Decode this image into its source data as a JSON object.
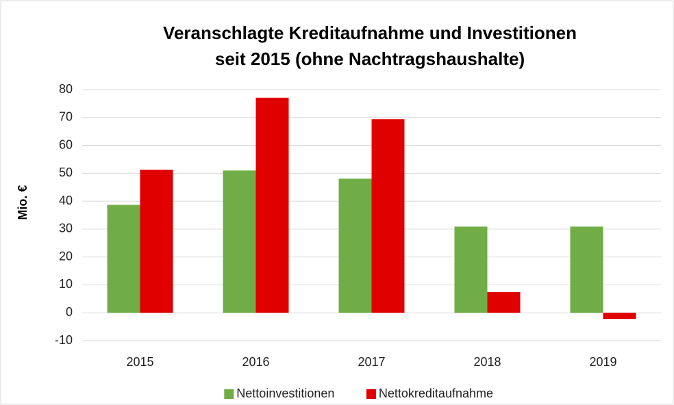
{
  "chart_data": {
    "type": "bar",
    "title": [
      "Veranschlagte Kreditaufnahme und Investitionen",
      "seit 2015 (ohne Nachtragshaushalte)"
    ],
    "y_label": "Mio. €",
    "categories": [
      "2015",
      "2016",
      "2017",
      "2018",
      "2019"
    ],
    "series": [
      {
        "name": "Nettoinvestitionen",
        "color": "#70ad47",
        "values": [
          38.7,
          51.0,
          48.1,
          30.9,
          30.9
        ]
      },
      {
        "name": "Nettokreditaufnahme",
        "color": "#e00000",
        "values": [
          51.3,
          77.1,
          69.4,
          7.4,
          -2.2
        ]
      }
    ],
    "ylim": [
      -10,
      80
    ],
    "yticks": [
      -10,
      0,
      10,
      20,
      30,
      40,
      50,
      60,
      70,
      80
    ],
    "grid": true,
    "legend": "bottom"
  }
}
